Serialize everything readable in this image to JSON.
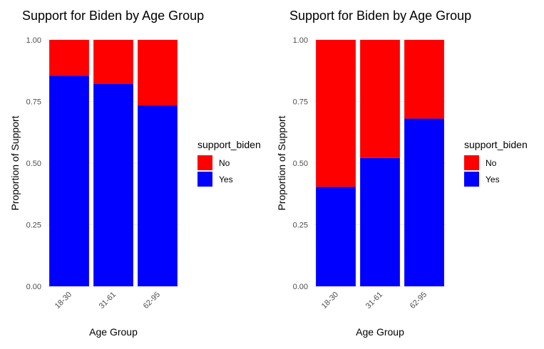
{
  "chart_data": [
    {
      "type": "bar",
      "stacked": true,
      "title": "Support for Biden by Age Group",
      "xlabel": "Age Group",
      "ylabel": "Proportion of Support",
      "categories": [
        "18-30",
        "31-61",
        "62-95"
      ],
      "ylim": [
        0,
        1
      ],
      "yticks": [
        "0.00",
        "0.25",
        "0.50",
        "0.75",
        "1.00"
      ],
      "grid": true,
      "legend": {
        "title": "support_biden",
        "position": "right"
      },
      "series": [
        {
          "name": "No",
          "color": "#ff0000",
          "values": [
            0.145,
            0.178,
            0.266
          ]
        },
        {
          "name": "Yes",
          "color": "#0000ff",
          "values": [
            0.855,
            0.822,
            0.734
          ]
        }
      ]
    },
    {
      "type": "bar",
      "stacked": true,
      "title": "Support for Biden by Age Group",
      "xlabel": "Age Group",
      "ylabel": "Proportion of Support",
      "categories": [
        "18-30",
        "31-61",
        "62-95"
      ],
      "ylim": [
        0,
        1
      ],
      "yticks": [
        "0.00",
        "0.25",
        "0.50",
        "0.75",
        "1.00"
      ],
      "grid": true,
      "legend": {
        "title": "support_biden",
        "position": "right"
      },
      "series": [
        {
          "name": "No",
          "color": "#ff0000",
          "values": [
            0.596,
            0.479,
            0.319
          ]
        },
        {
          "name": "Yes",
          "color": "#0000ff",
          "values": [
            0.404,
            0.521,
            0.681
          ]
        }
      ]
    }
  ]
}
